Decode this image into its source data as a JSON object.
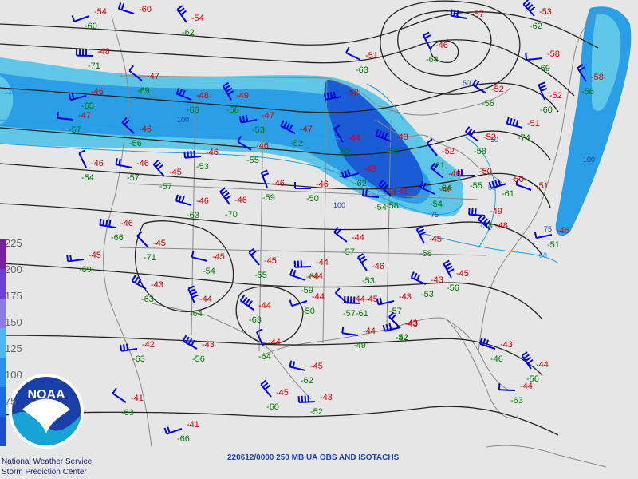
{
  "caption": "220612/0000 250 MB UA OBS AND ISOTACHS",
  "credit_line1": "National Weather Service",
  "credit_line2": "Storm Prediction Center",
  "logo_text": "NOAA",
  "legend_values": [
    "225",
    "200",
    "175",
    "150",
    "125",
    "100",
    "75"
  ],
  "isotach_labels": [
    "125",
    "100",
    "100",
    "100",
    "100",
    "75",
    "75",
    "50",
    "50",
    "50",
    "50"
  ],
  "colors": {
    "background": "#e6e6e6",
    "band_light": "#5fc6e8",
    "band_mid": "#2a9ee6",
    "band_dark": "#1a5cd6",
    "temp": "#dd0000",
    "dewpt": "#007a00",
    "barb": "#0000e0",
    "contour": "#222222",
    "isotach": "#20a0e0",
    "coast": "#888888"
  },
  "stations": [
    {
      "t": "-54",
      "d": "-60"
    },
    {
      "t": "-60",
      "d": ""
    },
    {
      "t": "-54",
      "d": "-62"
    },
    {
      "t": "-48",
      "d": "-71"
    },
    {
      "t": "-47",
      "d": "-69"
    },
    {
      "t": "-46",
      "d": "-65"
    },
    {
      "t": "-48",
      "d": "-60"
    },
    {
      "t": "-49",
      "d": "-58"
    },
    {
      "t": "-47",
      "d": "-57"
    },
    {
      "t": "-46",
      "d": "-56"
    },
    {
      "t": "-47",
      "d": "-53"
    },
    {
      "t": "-47",
      "d": "-52"
    },
    {
      "t": "-46",
      "d": "-54"
    },
    {
      "t": "-46",
      "d": "-57"
    },
    {
      "t": "-45",
      "d": "-57"
    },
    {
      "t": "-46",
      "d": "-53"
    },
    {
      "t": "-46",
      "d": "-55"
    },
    {
      "t": "-46",
      "d": "-59"
    },
    {
      "t": "-46",
      "d": "-63"
    },
    {
      "t": "-46",
      "d": "-70"
    },
    {
      "t": "-46",
      "d": "-50"
    },
    {
      "t": "-44",
      "d": "-57"
    },
    {
      "t": "-43",
      "d": "-62"
    },
    {
      "t": "-43",
      "d": "-58"
    },
    {
      "t": "-44",
      "d": "-52"
    },
    {
      "t": "-44",
      "d": "-54"
    },
    {
      "t": "-41",
      "d": "-58"
    },
    {
      "t": "-52",
      "d": ""
    },
    {
      "t": "-51",
      "d": "-63"
    },
    {
      "t": "-46",
      "d": "-64"
    },
    {
      "t": "-57",
      "d": ""
    },
    {
      "t": "-53",
      "d": "-62"
    },
    {
      "t": "-58",
      "d": "-69"
    },
    {
      "t": "-52",
      "d": "-56"
    },
    {
      "t": "-52",
      "d": "-60"
    },
    {
      "t": "-51",
      "d": "-74"
    },
    {
      "t": "-52",
      "d": "-61"
    },
    {
      "t": "-50",
      "d": "-55"
    },
    {
      "t": "-52",
      "d": "-58"
    },
    {
      "t": "-50",
      "d": "-61"
    },
    {
      "t": "-51",
      "d": ""
    },
    {
      "t": "-58",
      "d": "-56"
    },
    {
      "t": "-49",
      "d": "-54"
    },
    {
      "t": "-48",
      "d": ""
    },
    {
      "t": "-46",
      "d": "-51"
    },
    {
      "t": "-46",
      "d": "-54"
    },
    {
      "t": "-45",
      "d": "-58"
    },
    {
      "t": "-46",
      "d": "-66"
    },
    {
      "t": "-45",
      "d": "-71"
    },
    {
      "t": "-45",
      "d": "-69"
    },
    {
      "t": "-43",
      "d": "-63"
    },
    {
      "t": "-44",
      "d": "-64"
    },
    {
      "t": "-45",
      "d": "-54"
    },
    {
      "t": "-45",
      "d": "-55"
    },
    {
      "t": "-44",
      "d": "-64"
    },
    {
      "t": "-44",
      "d": "-63"
    },
    {
      "t": "-44",
      "d": "-50"
    },
    {
      "t": "-44",
      "d": "-59"
    },
    {
      "t": "-46",
      "d": "-53"
    },
    {
      "t": "-45",
      "d": "-61"
    },
    {
      "t": "-44",
      "d": "-57"
    },
    {
      "t": "-43",
      "d": "-57"
    },
    {
      "t": "-43",
      "d": "-53"
    },
    {
      "t": "-45",
      "d": "-56"
    },
    {
      "t": "-44",
      "d": "-49"
    },
    {
      "t": "-43",
      "d": "-47"
    },
    {
      "t": "-42",
      "d": "-63"
    },
    {
      "t": "-43",
      "d": "-56"
    },
    {
      "t": "-44",
      "d": "-64"
    },
    {
      "t": "-45",
      "d": "-62"
    },
    {
      "t": "-45",
      "d": "-60"
    },
    {
      "t": "-43",
      "d": "-52"
    },
    {
      "t": "-41",
      "d": "-63"
    },
    {
      "t": "-41",
      "d": "-66"
    },
    {
      "t": "-43",
      "d": "-46"
    },
    {
      "t": "-44",
      "d": "-56"
    },
    {
      "t": "-44",
      "d": "-63"
    },
    {
      "t": "-46",
      "d": "-64"
    },
    {
      "t": "-43",
      "d": "-52"
    }
  ]
}
